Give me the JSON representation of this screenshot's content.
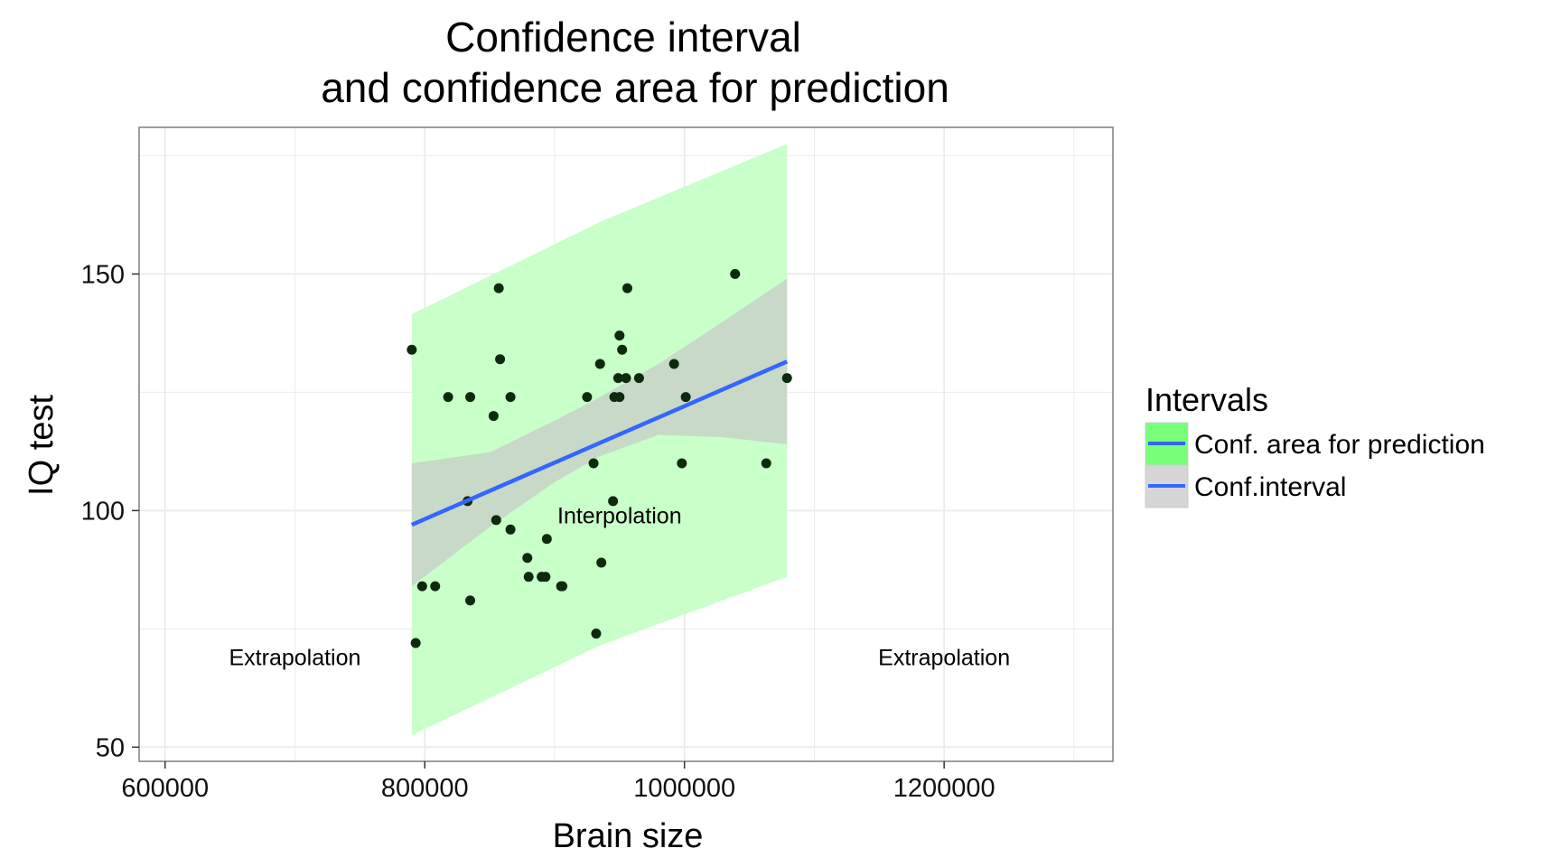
{
  "chart_data": {
    "type": "scatter",
    "title": [
      "Confidence interval",
      "and confidence area for prediction"
    ],
    "xlabel": "Brain size",
    "ylabel": "IQ test",
    "xlim": [
      580000,
      1330000
    ],
    "ylim": [
      47,
      181
    ],
    "x_ticks": [
      600000,
      800000,
      1000000,
      1200000
    ],
    "x_tick_labels": [
      "600000",
      "800000",
      "1000000",
      "1200000"
    ],
    "y_ticks": [
      50,
      100,
      150
    ],
    "y_tick_labels": [
      "50",
      "100",
      "150"
    ],
    "grid": true,
    "legend_position": "right",
    "colors": {
      "points": "#0d2a0d",
      "regression_line": "#3366ff",
      "prediction_band": "#c9ffc9",
      "confidence_band": "#c8d9c8",
      "legend_prediction_key": "#77ff77",
      "legend_confidence_key": "#d6d6d6",
      "panel_border": "#7f7f7f",
      "grid": "#ebebeb"
    },
    "regression_line": {
      "x": [
        790000,
        1079000
      ],
      "y": [
        97,
        131.5
      ]
    },
    "confidence_interval": {
      "x": [
        790000,
        850000,
        900000,
        935000,
        980000,
        1030000,
        1079000
      ],
      "lower": [
        84,
        96.5,
        106,
        111.5,
        116,
        115.5,
        114
      ],
      "upper": [
        110,
        112.3,
        119,
        124,
        131,
        140,
        149
      ]
    },
    "prediction_interval": {
      "x": [
        790000,
        935000,
        1079000
      ],
      "lower": [
        52.5,
        71.5,
        86
      ],
      "upper": [
        141.5,
        161,
        177.5
      ]
    },
    "points": {
      "x": [
        790000,
        793000,
        798000,
        808000,
        818000,
        833000,
        835000,
        835000,
        853000,
        855000,
        857000,
        858000,
        866000,
        866000,
        879000,
        880000,
        890000,
        893000,
        894000,
        905000,
        906000,
        925000,
        930000,
        932000,
        935000,
        936000,
        945000,
        946000,
        949000,
        950000,
        950000,
        952000,
        955000,
        956000,
        965000,
        992000,
        998000,
        1001000,
        1039000,
        1063000,
        1079000
      ],
      "y": [
        134,
        72,
        84,
        84,
        124,
        102,
        124,
        81,
        120,
        98,
        147,
        132,
        96,
        124,
        90,
        86,
        86,
        86,
        94,
        84,
        84,
        124,
        110,
        74,
        131,
        89,
        102,
        124,
        128,
        137,
        124,
        134,
        128,
        147,
        128,
        131,
        110,
        124,
        150,
        110,
        128
      ]
    },
    "annotations": [
      {
        "text": "Extrapolation",
        "x": 700000,
        "y": 69
      },
      {
        "text": "Interpolation",
        "x": 950000,
        "y": 99
      },
      {
        "text": "Extrapolation",
        "x": 1200000,
        "y": 69
      }
    ],
    "legend": {
      "title": "Intervals",
      "entries": [
        {
          "label": "Conf. area for prediction",
          "key": "prediction"
        },
        {
          "label": "Conf.interval",
          "key": "confidence"
        }
      ]
    }
  }
}
